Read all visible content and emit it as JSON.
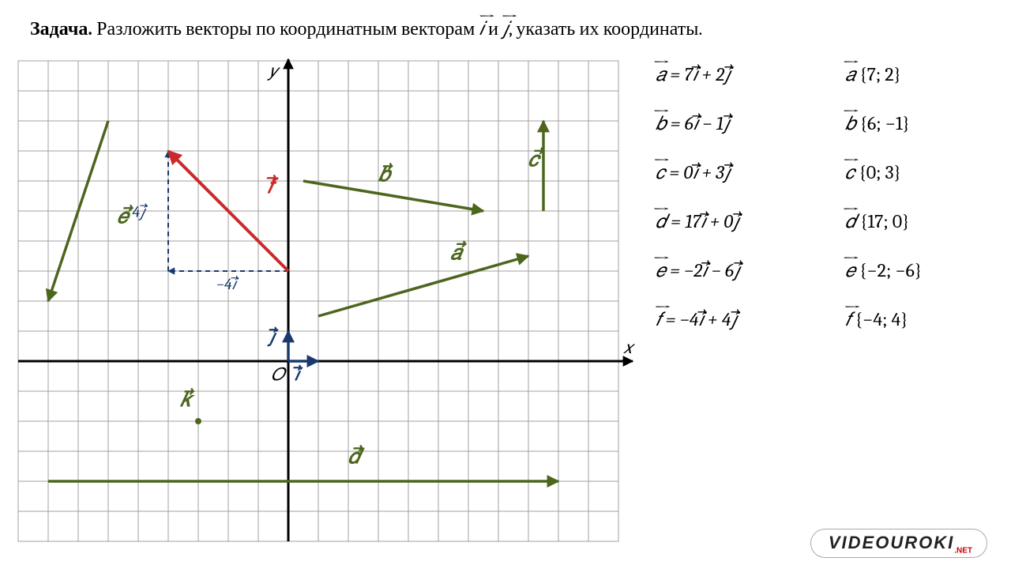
{
  "problem": {
    "label": "Задача.",
    "text_before": " Разложить векторы по координатным векторам ",
    "vec1": "𝑖",
    "and": " и ",
    "vec2": "𝑗",
    "text_after": ", указать их координаты."
  },
  "axes": {
    "x_label": "𝑥",
    "y_label": "𝑦",
    "origin": "𝑂",
    "i_label": "𝑖",
    "j_label": "𝑗",
    "f_dx_label": "−4𝑖⃗",
    "f_dy_label": "4𝑗⃗"
  },
  "grid": {
    "cell": 38,
    "cols": 20,
    "rows": 16,
    "origin_col": 9,
    "origin_row": 10,
    "border_color": "#a0a0a0",
    "bg": "#ffffff"
  },
  "colors": {
    "olive": "#4c661e",
    "red": "#c92a2a",
    "navy": "#1a3a6e",
    "black": "#000000",
    "grid": "#a0a0a0"
  },
  "vectors": {
    "a": {
      "label": "𝑎",
      "start": [
        1,
        1.5
      ],
      "end": [
        8,
        3.5
      ],
      "color": "olive",
      "label_at": [
        5.4,
        3.4
      ]
    },
    "b": {
      "label": "𝑏",
      "start": [
        0.5,
        6
      ],
      "end": [
        6.5,
        5
      ],
      "color": "olive",
      "label_at": [
        3.0,
        6.0
      ]
    },
    "c": {
      "label": "𝑐",
      "start": [
        8.5,
        5
      ],
      "end": [
        8.5,
        8
      ],
      "color": "olive",
      "label_at": [
        8.0,
        6.5
      ]
    },
    "d": {
      "label": "𝑑",
      "start": [
        -8,
        -4
      ],
      "end": [
        9,
        -4
      ],
      "color": "olive",
      "label_at": [
        2.0,
        -3.4
      ]
    },
    "e": {
      "label": "𝑒",
      "start": [
        -6,
        8
      ],
      "end": [
        -8,
        2
      ],
      "color": "olive",
      "label_at": [
        -5.7,
        4.6
      ]
    },
    "f": {
      "label": "𝑓",
      "start": [
        0,
        3
      ],
      "end": [
        -4,
        7
      ],
      "color": "red",
      "label_at": [
        -0.7,
        5.6
      ]
    },
    "k": {
      "label": "𝑘",
      "start": [
        -3,
        -2
      ],
      "end": [
        -3,
        -2
      ],
      "color": "olive",
      "label_at": [
        -3.6,
        -1.5
      ],
      "is_point": true
    },
    "i": {
      "label": "𝑖",
      "start": [
        0,
        0
      ],
      "end": [
        1,
        0
      ],
      "color": "navy"
    },
    "j": {
      "label": "𝑗",
      "start": [
        0,
        0
      ],
      "end": [
        0,
        1
      ],
      "color": "navy"
    }
  },
  "results": [
    {
      "v": "𝑎",
      "expr": "7𝑖⃗ + 2𝑗⃗",
      "coord": "{7; 2}"
    },
    {
      "v": "𝑏",
      "expr": "6𝑖⃗ − 1𝑗⃗",
      "coord": "{6; −1}"
    },
    {
      "v": "𝑐",
      "expr": "0𝑖⃗ + 3𝑗⃗",
      "coord": "{0; 3}"
    },
    {
      "v": "𝑑",
      "expr": "17𝑖⃗ + 0𝑗⃗",
      "coord": "{17; 0}"
    },
    {
      "v": "𝑒",
      "expr": "−2𝑖⃗ − 6𝑗⃗",
      "coord": "{−2; −6}"
    },
    {
      "v": "𝑓",
      "expr": "−4𝑖⃗ + 4𝑗⃗",
      "coord": "{−4; 4}"
    }
  ],
  "watermark": {
    "main": "VIDEOUROKI",
    "sub": ".NET"
  }
}
